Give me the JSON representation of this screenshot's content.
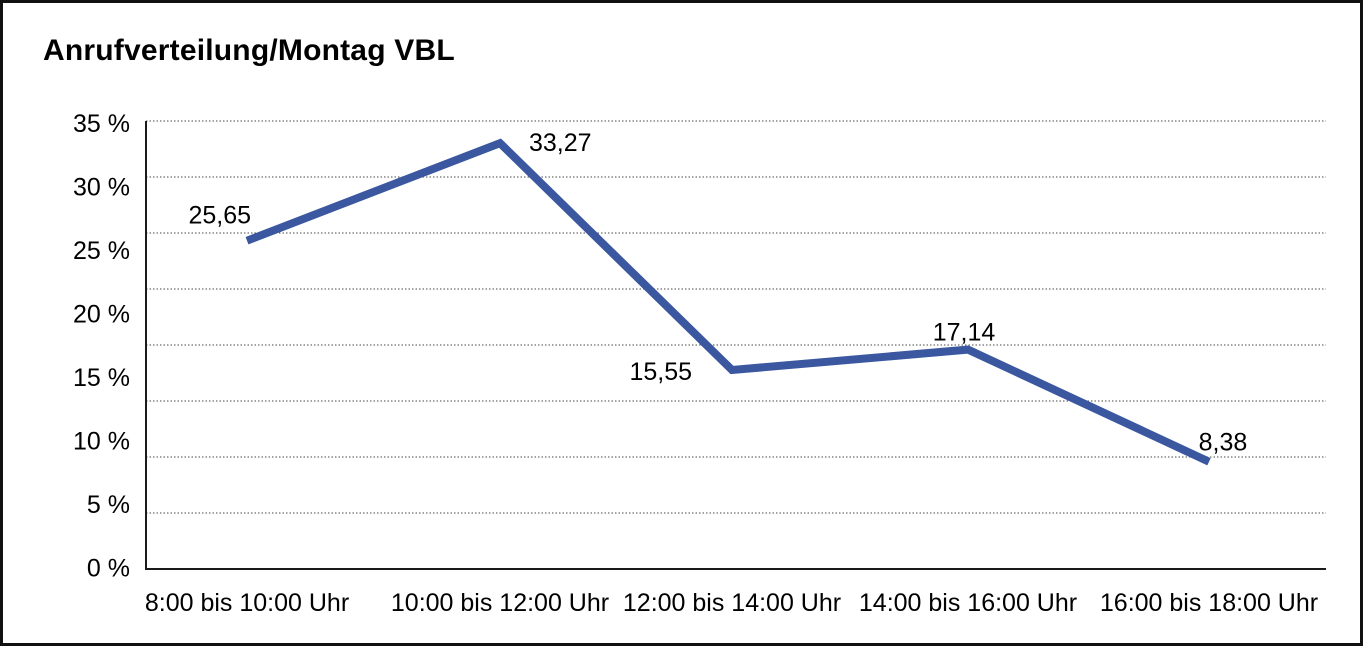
{
  "chart_data": {
    "type": "line",
    "title": "Anrufverteilung/Montag VBL",
    "categories": [
      "8:00 bis 10:00 Uhr",
      "10:00 bis 12:00 Uhr",
      "12:00 bis 14:00 Uhr",
      "14:00 bis 16:00 Uhr",
      "16:00 bis 18:00 Uhr"
    ],
    "values": [
      25.65,
      33.27,
      15.55,
      17.14,
      8.38
    ],
    "value_labels": [
      "25,65",
      "33,27",
      "15,55",
      "17,14",
      "8,38"
    ],
    "y_tick_labels": [
      "35 %",
      "30 %",
      "25 %",
      "20 %",
      "15 %",
      "10 %",
      "5 %",
      "0 %"
    ],
    "ylim": [
      0,
      35
    ],
    "xlabel": "",
    "ylabel": "",
    "legend": "none",
    "grid": "horizontal-dotted",
    "line_color": "#3A57A0",
    "grid_color": "#4A4A4A",
    "axis_color": "#1A1A1A",
    "text_color": "#000000",
    "background": "#FFFFFF"
  }
}
